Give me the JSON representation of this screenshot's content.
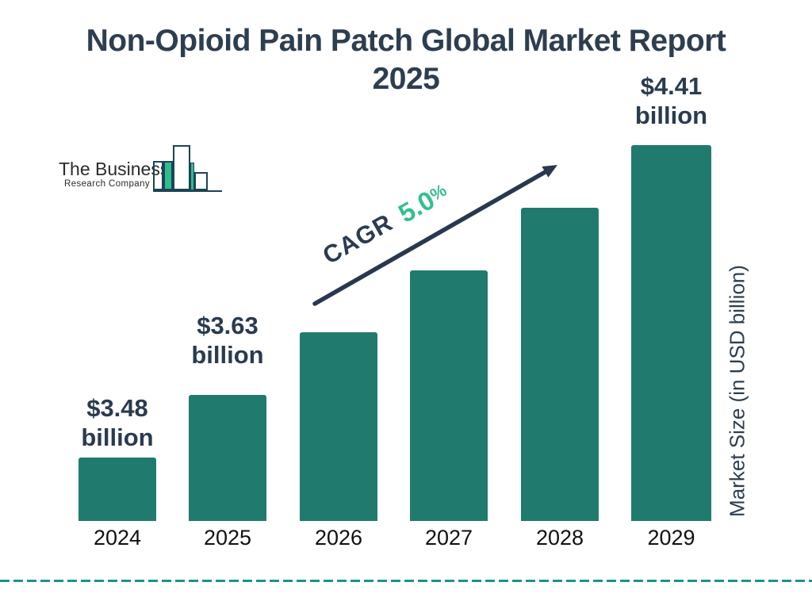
{
  "title": {
    "line1": "Non-Opioid Pain Patch Global Market Report",
    "line2": "2025"
  },
  "logo": {
    "name": "The Business",
    "subname": "Research Company"
  },
  "chart_data": {
    "type": "bar",
    "title": "Non-Opioid Pain Patch Global Market Report 2025",
    "categories": [
      "2024",
      "2025",
      "2026",
      "2027",
      "2028",
      "2029"
    ],
    "values": [
      3.48,
      3.63,
      3.81,
      4.0,
      4.2,
      4.41
    ],
    "unit": "USD billion",
    "bar_labels": [
      "$3.48 billion",
      "$3.63 billion",
      null,
      null,
      null,
      "$4.41 billion"
    ],
    "ylabel": "Market Size (in USD billion)",
    "xlabel": "",
    "cagr": {
      "label": "CAGR",
      "value": "5.0",
      "percent": "%"
    },
    "grid": false,
    "legend": false,
    "y_axis_ticks_visible": false,
    "colors": {
      "bar": "#217a6e",
      "accent_green": "#34bf8e",
      "navy_text": "#2d3e50",
      "arrow": "#27384f",
      "dashed_line": "#17968a",
      "year_label": "#111111",
      "logo_green": "#2ebd8e",
      "logo_outline": "#1d4354"
    }
  }
}
